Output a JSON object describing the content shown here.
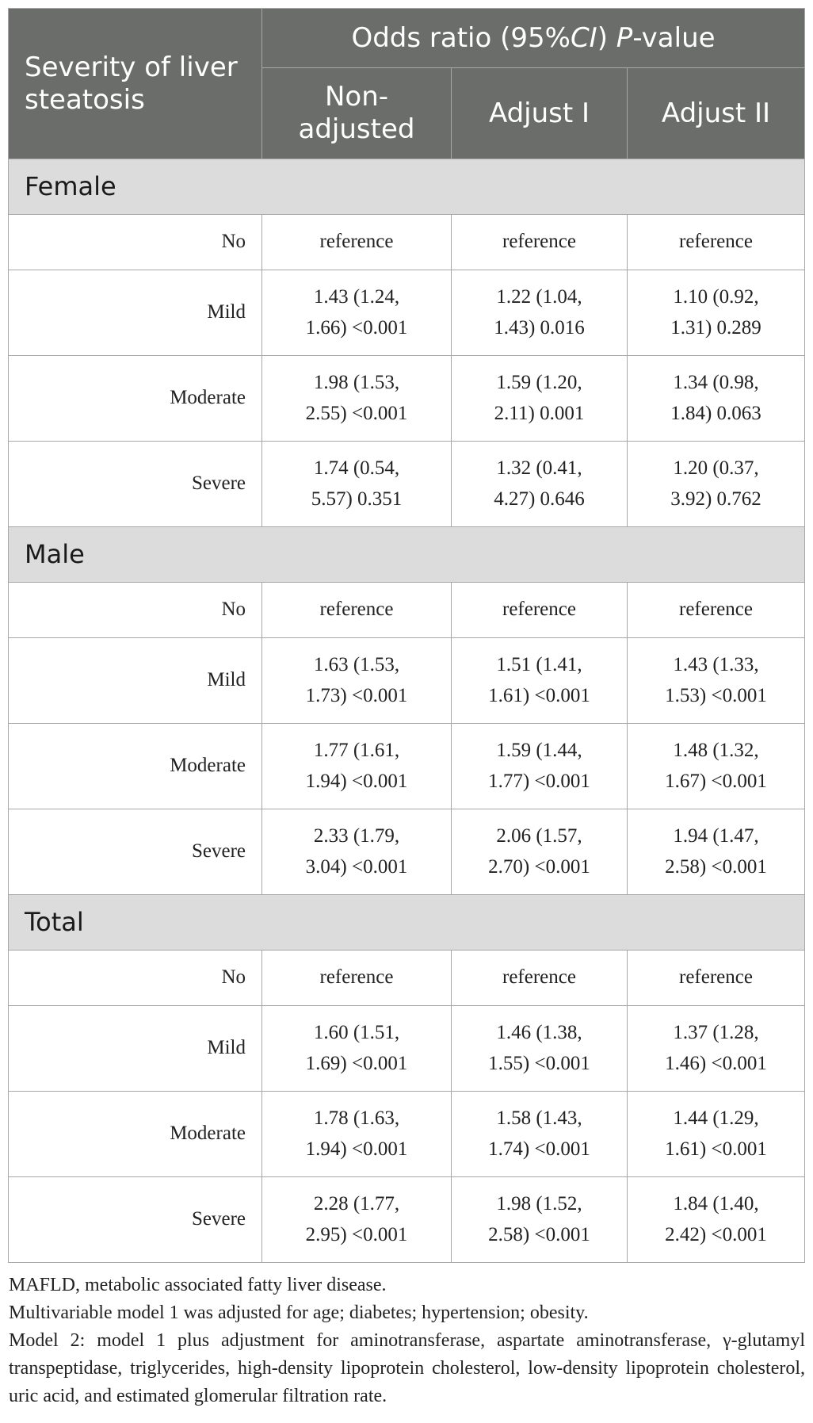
{
  "header": {
    "stub": "Severity of liver steatosis",
    "group_pre": "Odds ratio (95%",
    "group_ci": "CI",
    "group_mid": ") ",
    "group_p": "P",
    "group_post": "-value",
    "columns": [
      "Non-adjusted",
      "Adjust I",
      "Adjust II"
    ]
  },
  "groups": [
    {
      "label": "Female",
      "rows": [
        {
          "label": "No",
          "values": [
            "reference",
            "reference",
            "reference"
          ]
        },
        {
          "label": "Mild",
          "values": [
            "1.43 (1.24, 1.66) <0.001",
            "1.22 (1.04, 1.43) 0.016",
            "1.10 (0.92, 1.31) 0.289"
          ]
        },
        {
          "label": "Moderate",
          "values": [
            "1.98 (1.53, 2.55) <0.001",
            "1.59 (1.20, 2.11) 0.001",
            "1.34 (0.98, 1.84) 0.063"
          ]
        },
        {
          "label": "Severe",
          "values": [
            "1.74 (0.54, 5.57) 0.351",
            "1.32 (0.41, 4.27) 0.646",
            "1.20 (0.37, 3.92) 0.762"
          ]
        }
      ]
    },
    {
      "label": "Male",
      "rows": [
        {
          "label": "No",
          "values": [
            "reference",
            "reference",
            "reference"
          ]
        },
        {
          "label": "Mild",
          "values": [
            "1.63 (1.53, 1.73) <0.001",
            "1.51 (1.41, 1.61) <0.001",
            "1.43 (1.33, 1.53) <0.001"
          ]
        },
        {
          "label": "Moderate",
          "values": [
            "1.77 (1.61, 1.94) <0.001",
            "1.59 (1.44, 1.77) <0.001",
            "1.48 (1.32, 1.67) <0.001"
          ]
        },
        {
          "label": "Severe",
          "values": [
            "2.33 (1.79, 3.04) <0.001",
            "2.06 (1.57, 2.70) <0.001",
            "1.94 (1.47, 2.58) <0.001"
          ]
        }
      ]
    },
    {
      "label": "Total",
      "rows": [
        {
          "label": "No",
          "values": [
            "reference",
            "reference",
            "reference"
          ]
        },
        {
          "label": "Mild",
          "values": [
            "1.60 (1.51, 1.69) <0.001",
            "1.46 (1.38, 1.55) <0.001",
            "1.37 (1.28, 1.46) <0.001"
          ]
        },
        {
          "label": "Moderate",
          "values": [
            "1.78 (1.63, 1.94) <0.001",
            "1.58 (1.43, 1.74) <0.001",
            "1.44 (1.29, 1.61) <0.001"
          ]
        },
        {
          "label": "Severe",
          "values": [
            "2.28 (1.77, 2.95) <0.001",
            "1.98 (1.52, 2.58) <0.001",
            "1.84 (1.40, 2.42) <0.001"
          ]
        }
      ]
    }
  ],
  "notes": [
    "MAFLD, metabolic associated fatty liver disease.",
    "Multivariable model 1 was adjusted for age; diabetes; hypertension; obesity.",
    "Model 2: model 1 plus adjustment for aminotransferase, aspartate aminotransferase, γ-glutamyl transpeptidase, triglycerides, high-density lipoprotein cholesterol, low-density lipoprotein cholesterol, uric acid, and estimated glomerular filtration rate."
  ],
  "colors": {
    "header_bg": "#6b6d6b",
    "group_bg": "#dcdcdc",
    "border": "#a7a7a7"
  }
}
